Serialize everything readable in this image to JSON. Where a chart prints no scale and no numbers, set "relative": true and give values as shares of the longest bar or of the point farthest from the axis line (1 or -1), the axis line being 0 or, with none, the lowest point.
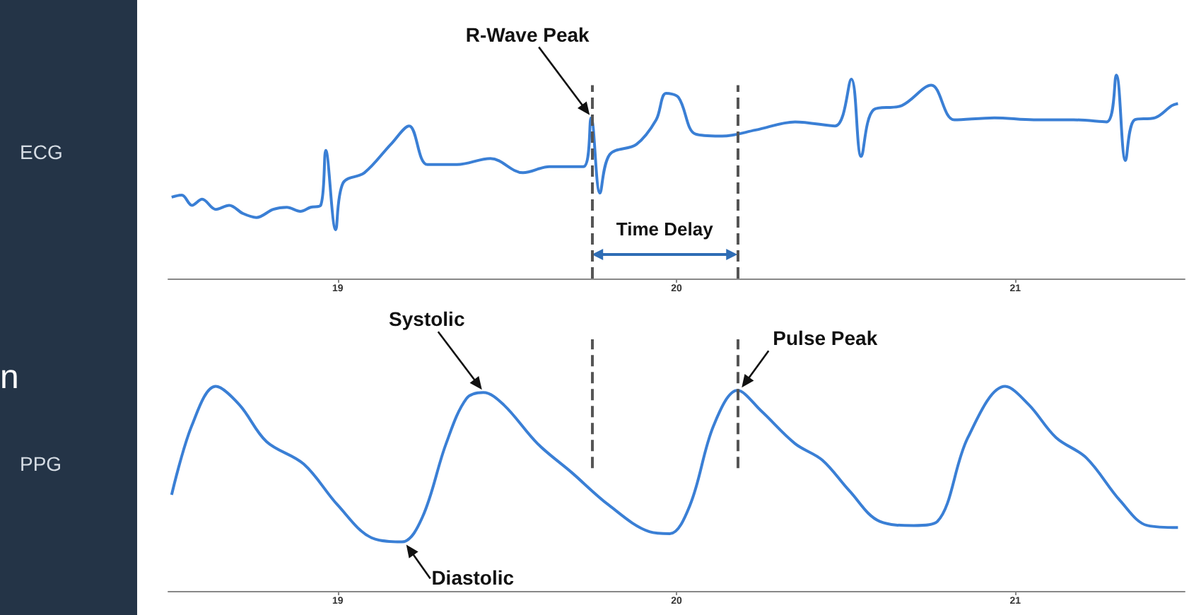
{
  "chart_data": [
    {
      "type": "line",
      "ylabel": "ECG",
      "relative": true,
      "xlim": [
        18.5,
        21.5
      ],
      "xticks": [
        19,
        20,
        21
      ],
      "grid": false,
      "color": "#3a7fd5",
      "x": [
        18.51,
        18.54,
        18.57,
        18.6,
        18.64,
        18.68,
        18.72,
        18.76,
        18.81,
        18.85,
        18.89,
        18.92,
        18.95,
        18.965,
        18.994,
        19.016,
        19.079,
        19.157,
        19.211,
        19.265,
        19.352,
        19.451,
        19.547,
        19.625,
        19.725,
        19.748,
        19.774,
        19.803,
        19.882,
        19.94,
        19.969,
        20.006,
        20.056,
        20.135,
        20.234,
        20.35,
        20.468,
        20.516,
        20.545,
        20.582,
        20.665,
        20.752,
        20.82,
        20.938,
        21.054,
        21.172,
        21.269,
        21.298,
        21.325,
        21.352,
        21.412,
        21.462,
        21.48
      ],
      "values": [
        0.4,
        0.41,
        0.36,
        0.39,
        0.34,
        0.36,
        0.32,
        0.3,
        0.34,
        0.35,
        0.33,
        0.35,
        0.36,
        0.63,
        0.24,
        0.47,
        0.52,
        0.66,
        0.75,
        0.56,
        0.56,
        0.59,
        0.52,
        0.55,
        0.55,
        0.79,
        0.42,
        0.61,
        0.66,
        0.78,
        0.91,
        0.89,
        0.71,
        0.7,
        0.73,
        0.77,
        0.75,
        0.98,
        0.6,
        0.83,
        0.85,
        0.95,
        0.78,
        0.79,
        0.78,
        0.78,
        0.77,
        1.0,
        0.58,
        0.78,
        0.79,
        0.85,
        0.86
      ],
      "ref_lines": [
        {
          "axis": "x",
          "value": 19.75,
          "color": "#555555",
          "line_style": "dashed"
        },
        {
          "axis": "x",
          "value": 20.18,
          "color": "#555555",
          "line_style": "dashed"
        }
      ],
      "annotations": [
        {
          "text": "R-Wave Peak",
          "x": 19.748,
          "y": 0.79
        },
        "Time Delay"
      ]
    },
    {
      "type": "line",
      "ylabel": "PPG",
      "relative": true,
      "xlim": [
        18.5,
        21.5
      ],
      "xticks": [
        19,
        20,
        21
      ],
      "grid": false,
      "color": "#3a7fd5",
      "x": [
        18.51,
        18.57,
        18.64,
        18.71,
        18.79,
        18.9,
        19.0,
        19.1,
        19.19,
        19.25,
        19.32,
        19.38,
        19.43,
        19.49,
        19.59,
        19.69,
        19.8,
        19.92,
        19.98,
        20.04,
        20.11,
        20.18,
        20.25,
        20.35,
        20.43,
        20.51,
        20.6,
        20.7,
        20.77,
        20.86,
        20.97,
        21.04,
        21.12,
        21.21,
        21.31,
        21.39,
        21.48
      ],
      "values": [
        0.47,
        0.81,
        1.0,
        0.91,
        0.73,
        0.62,
        0.42,
        0.26,
        0.24,
        0.36,
        0.72,
        0.94,
        0.97,
        0.91,
        0.72,
        0.58,
        0.42,
        0.29,
        0.28,
        0.42,
        0.81,
        0.98,
        0.88,
        0.72,
        0.64,
        0.49,
        0.34,
        0.32,
        0.34,
        0.75,
        1.0,
        0.91,
        0.75,
        0.65,
        0.44,
        0.32,
        0.31
      ],
      "ref_lines": [
        {
          "axis": "x",
          "value": 19.75,
          "color": "#555555",
          "line_style": "dashed"
        },
        {
          "axis": "x",
          "value": 20.18,
          "color": "#555555",
          "line_style": "dashed"
        }
      ],
      "annotations": [
        {
          "text": "Systolic",
          "x": 19.43,
          "y": 0.97
        },
        {
          "text": "Diastolic",
          "x": 19.19,
          "y": 0.24
        },
        {
          "text": "Pulse Peak",
          "x": 20.18,
          "y": 0.98
        },
        "n"
      ]
    }
  ]
}
